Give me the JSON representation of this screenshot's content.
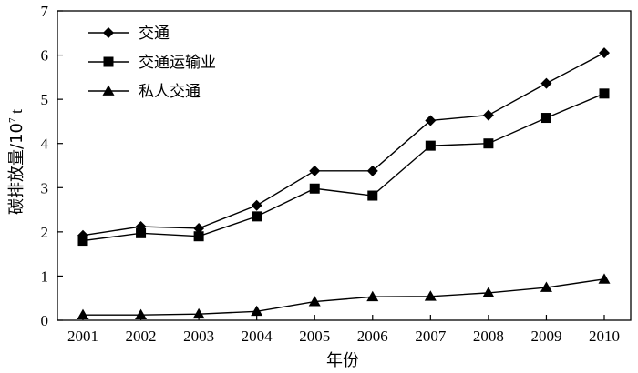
{
  "chart_data": {
    "type": "line",
    "x": [
      2001,
      2002,
      2003,
      2004,
      2005,
      2006,
      2007,
      2008,
      2009,
      2010
    ],
    "series": [
      {
        "name": "交通",
        "marker": "diamond",
        "values": [
          1.92,
          2.12,
          2.08,
          2.6,
          3.38,
          3.38,
          4.52,
          4.64,
          5.36,
          6.05
        ]
      },
      {
        "name": "交通运输业",
        "marker": "square",
        "values": [
          1.8,
          1.97,
          1.9,
          2.35,
          2.98,
          2.82,
          3.95,
          4.0,
          4.58,
          5.13
        ]
      },
      {
        "name": "私人交通",
        "marker": "triangle",
        "values": [
          0.12,
          0.12,
          0.14,
          0.2,
          0.42,
          0.53,
          0.54,
          0.62,
          0.74,
          0.93
        ]
      }
    ],
    "xlabel": "年份",
    "ylabel": {
      "main": "碳排放量/10",
      "sup": "7",
      "unit": " t"
    },
    "ylim": [
      0,
      7
    ],
    "yticks": [
      0,
      1,
      2,
      3,
      4,
      5,
      6,
      7
    ],
    "grid": false,
    "legend_position": "top-left"
  }
}
